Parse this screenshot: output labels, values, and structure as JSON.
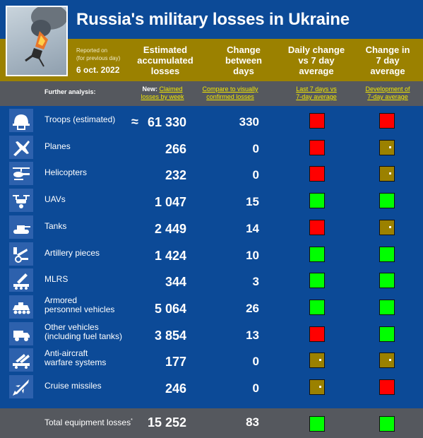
{
  "header": {
    "title": "Russia's military losses in Ukraine",
    "reported_line1": "Reported on",
    "reported_line2": "(for previous day)",
    "date": "6 oct. 2022",
    "columns": {
      "estimated": [
        "Estimated",
        "accumulated",
        "losses"
      ],
      "change": [
        "Change",
        "between",
        "days"
      ],
      "daily": [
        "Daily change",
        "vs 7 day",
        "average"
      ],
      "seven": [
        "Change in",
        "7 day",
        "average"
      ]
    }
  },
  "analysis": {
    "label": "Further analysis:",
    "new_prefix": "New:",
    "link1_a": "Claimed",
    "link1_b": "losses by week",
    "link2_a": "Compare to visually",
    "link2_b": "confirmed losses",
    "link3_a": "Last 7 days vs",
    "link3_b": "7-day average",
    "link4_a": "Development of",
    "link4_b": "7-day average"
  },
  "colors": {
    "background": "#0c4a97",
    "header_gold": "#9b8100",
    "analysis_gray": "#55585e",
    "icon_tile": "#2d61ad",
    "status_red": "#ff0000",
    "status_green": "#00ff00",
    "status_neutral": "#9b8100",
    "link_yellow": "#f2e700"
  },
  "rows": [
    {
      "icon": "helmet-icon",
      "label1": "Troops (estimated)",
      "label2": "",
      "approx": "≈",
      "value": "61 330",
      "change": "330",
      "daily": "red",
      "seven": "red"
    },
    {
      "icon": "plane-icon",
      "label1": "Planes",
      "label2": "",
      "approx": "",
      "value": "266",
      "change": "0",
      "daily": "red",
      "seven": "gold"
    },
    {
      "icon": "helicopter-icon",
      "label1": "Helicopters",
      "label2": "",
      "approx": "",
      "value": "232",
      "change": "0",
      "daily": "red",
      "seven": "gold"
    },
    {
      "icon": "drone-icon",
      "label1": "UAVs",
      "label2": "",
      "approx": "",
      "value": "1 047",
      "change": "15",
      "daily": "green",
      "seven": "green"
    },
    {
      "icon": "tank-icon",
      "label1": "Tanks",
      "label2": "",
      "approx": "",
      "value": "2 449",
      "change": "14",
      "daily": "red",
      "seven": "gold"
    },
    {
      "icon": "artillery-icon",
      "label1": "Artillery pieces",
      "label2": "",
      "approx": "",
      "value": "1 424",
      "change": "10",
      "daily": "green",
      "seven": "green"
    },
    {
      "icon": "mlrs-icon",
      "label1": "MLRS",
      "label2": "",
      "approx": "",
      "value": "344",
      "change": "3",
      "daily": "green",
      "seven": "green"
    },
    {
      "icon": "apc-icon",
      "label1": "Armored",
      "label2": "personnel vehicles",
      "approx": "",
      "value": "5 064",
      "change": "26",
      "daily": "green",
      "seven": "green"
    },
    {
      "icon": "truck-icon",
      "label1": "Other vehicles",
      "label2": "(including fuel tanks)",
      "approx": "",
      "value": "3 854",
      "change": "13",
      "daily": "red",
      "seven": "green"
    },
    {
      "icon": "anti-aircraft-icon",
      "label1": "Anti-aircraft",
      "label2": "warfare systems",
      "approx": "",
      "value": "177",
      "change": "0",
      "daily": "gold",
      "seven": "gold"
    },
    {
      "icon": "missile-icon",
      "label1": "Cruise missiles",
      "label2": "",
      "approx": "",
      "value": "246",
      "change": "0",
      "daily": "gold",
      "seven": "red"
    }
  ],
  "total": {
    "label": "Total equipment losses",
    "marker": "*",
    "value": "15 252",
    "change": "83",
    "daily": "green",
    "seven": "green"
  }
}
